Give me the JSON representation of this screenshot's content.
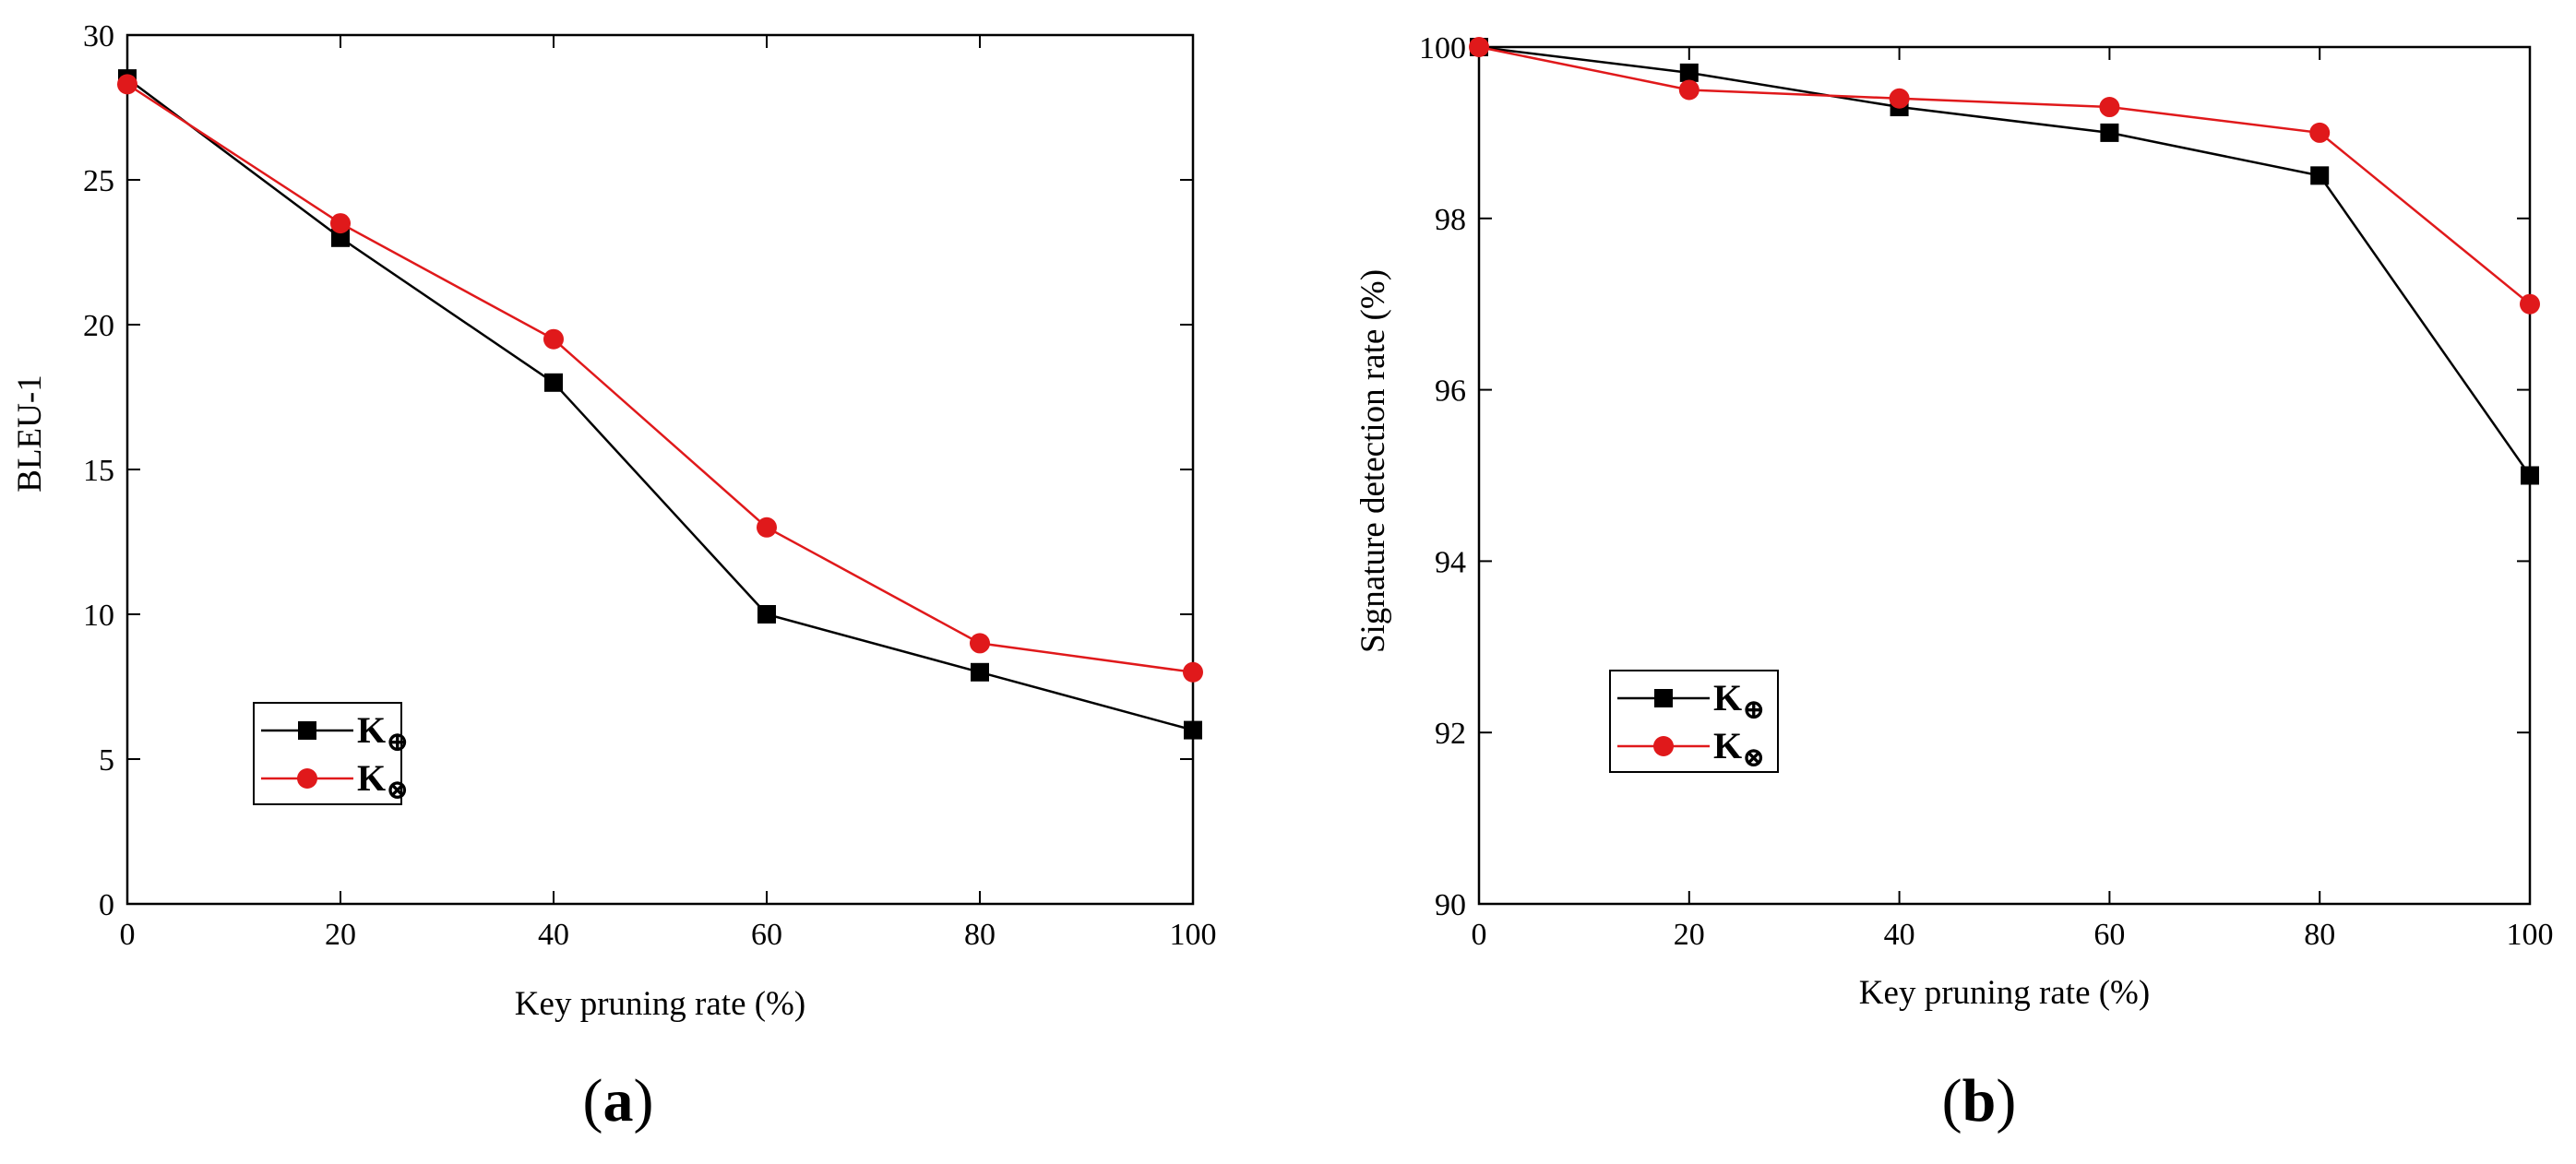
{
  "chart_data": [
    {
      "type": "line",
      "panel_label": "a",
      "title": "",
      "xlabel": "Key pruning rate (%)",
      "ylabel": "BLEU-1",
      "xlim": [
        0,
        100
      ],
      "ylim": [
        0,
        30
      ],
      "xticks": [
        0,
        20,
        40,
        60,
        80,
        100
      ],
      "yticks": [
        0,
        5,
        10,
        15,
        20,
        25,
        30
      ],
      "grid": false,
      "legend_position": "lower-left",
      "x": [
        0,
        20,
        40,
        60,
        80,
        100
      ],
      "series": [
        {
          "name": "K⊕",
          "base": "K",
          "sub": "⊕",
          "color": "#000000",
          "marker": "square",
          "values": [
            28.5,
            23,
            18,
            10,
            8,
            6
          ]
        },
        {
          "name": "K⊗",
          "base": "K",
          "sub": "⊗",
          "color": "#e0191b",
          "marker": "circle",
          "values": [
            28.3,
            23.5,
            19.5,
            13,
            9,
            8
          ]
        }
      ]
    },
    {
      "type": "line",
      "panel_label": "b",
      "title": "",
      "xlabel": "Key pruning rate (%)",
      "ylabel": "Signature detection rate (%)",
      "xlim": [
        0,
        100
      ],
      "ylim": [
        90,
        100
      ],
      "xticks": [
        0,
        20,
        40,
        60,
        80,
        100
      ],
      "yticks": [
        90,
        92,
        94,
        96,
        98,
        100
      ],
      "grid": false,
      "legend_position": "lower-left",
      "x": [
        0,
        20,
        40,
        60,
        80,
        100
      ],
      "series": [
        {
          "name": "K⊕",
          "base": "K",
          "sub": "⊕",
          "color": "#000000",
          "marker": "square",
          "values": [
            100,
            99.7,
            99.3,
            99,
            98.5,
            95
          ]
        },
        {
          "name": "K⊗",
          "base": "K",
          "sub": "⊗",
          "color": "#e0191b",
          "marker": "circle",
          "values": [
            100,
            99.5,
            99.4,
            99.3,
            99,
            97
          ]
        }
      ]
    }
  ]
}
